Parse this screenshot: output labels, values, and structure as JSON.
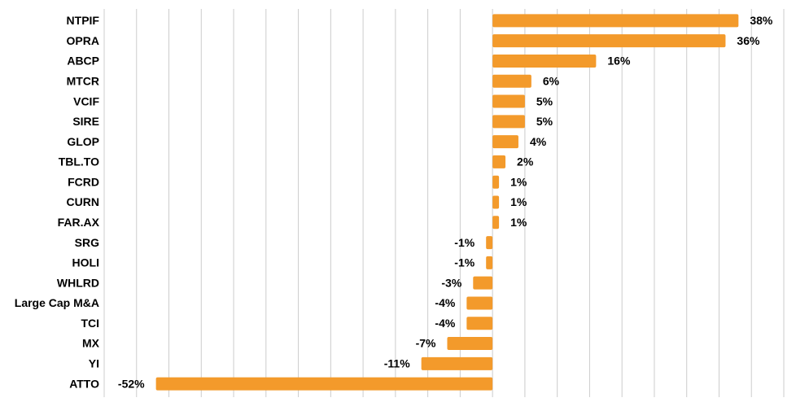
{
  "chart_data": {
    "type": "bar",
    "orientation": "horizontal",
    "categories": [
      "NTPIF",
      "OPRA",
      "ABCP",
      "MTCR",
      "VCIF",
      "SIRE",
      "GLOP",
      "TBL.TO",
      "FCRD",
      "CURN",
      "FAR.AX",
      "SRG",
      "HOLI",
      "WHLRD",
      "Large Cap M&A",
      "TCI",
      "MX",
      "YI",
      "ATTO"
    ],
    "values": [
      38,
      36,
      16,
      6,
      5,
      5,
      4,
      2,
      1,
      1,
      1,
      -1,
      -1,
      -3,
      -4,
      -4,
      -7,
      -11,
      -52
    ],
    "value_labels": [
      "38%",
      "36%",
      "16%",
      "6%",
      "5%",
      "5%",
      "4%",
      "2%",
      "1%",
      "1%",
      "1%",
      "-1%",
      "-1%",
      "-3%",
      "-4%",
      "-4%",
      "-7%",
      "-11%",
      "-52%"
    ],
    "color": "#f39a2b",
    "xlim": [
      -60,
      45
    ],
    "xticks": [
      -60,
      -55,
      -50,
      -45,
      -40,
      -35,
      -30,
      -25,
      -20,
      -15,
      -10,
      -5,
      0,
      5,
      10,
      15,
      20,
      25,
      30,
      35,
      40,
      45
    ],
    "grid": true
  }
}
